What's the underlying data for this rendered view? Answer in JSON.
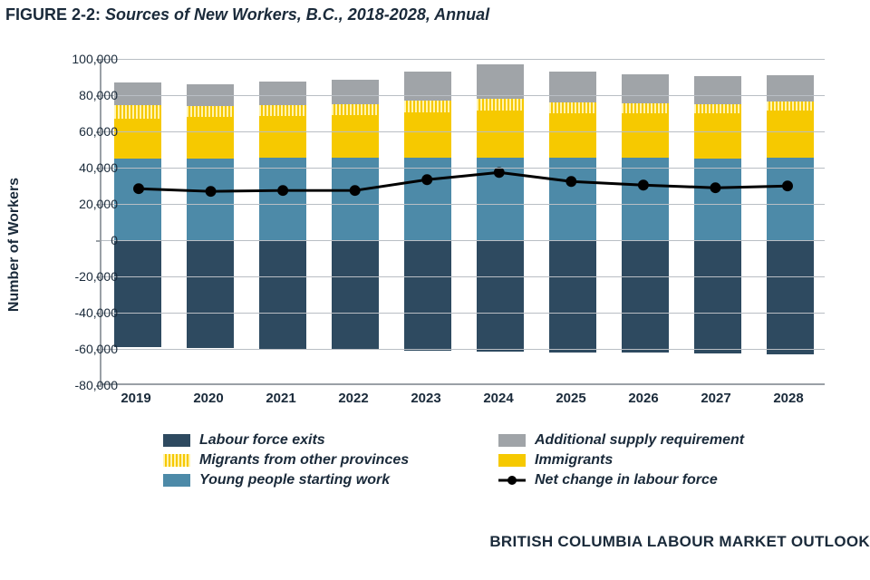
{
  "title_prefix": "FIGURE 2-2: ",
  "title_italic": "Sources of New Workers, B.C., 2018-2028, Annual",
  "footer": "BRITISH COLUMBIA LABOUR MARKET OUTLOOK",
  "ylabel": "Number of Workers",
  "chart": {
    "type": "stacked-bar-with-line",
    "ylim": [
      -80000,
      100000
    ],
    "ytick_step": 20000,
    "yticks": [
      -80000,
      -60000,
      -40000,
      -20000,
      0,
      20000,
      40000,
      60000,
      80000,
      100000
    ],
    "ytick_labels": [
      "-80,000",
      "-60,000",
      "-40,000",
      "-20,000",
      "0",
      "20,000",
      "40,000",
      "60,000",
      "80,000",
      "100,000"
    ],
    "categories": [
      "2019",
      "2020",
      "2021",
      "2022",
      "2023",
      "2024",
      "2025",
      "2026",
      "2027",
      "2028"
    ],
    "series": {
      "labour_force_exits": [
        -59000,
        -59500,
        -60000,
        -60500,
        -61000,
        -61500,
        -62000,
        -62000,
        -62500,
        -63000
      ],
      "young_people_starting_work": [
        45000,
        45000,
        45500,
        45500,
        45500,
        45500,
        45500,
        45500,
        45000,
        45500
      ],
      "immigrants": [
        22000,
        23000,
        23000,
        23500,
        25000,
        26000,
        24500,
        24500,
        25000,
        26000
      ],
      "migrants_from_other_provinces": [
        7500,
        6000,
        6000,
        6000,
        6500,
        6500,
        6000,
        5500,
        5000,
        5000
      ],
      "additional_supply_requirement": [
        12500,
        12000,
        13000,
        13500,
        16000,
        19000,
        17000,
        16000,
        15500,
        14500
      ],
      "net_change_in_labour_force": [
        28000,
        26500,
        27000,
        27000,
        33000,
        37000,
        32000,
        30000,
        28500,
        29500
      ]
    },
    "colors": {
      "labour_force_exits": "#2e4a60",
      "young_people_starting_work": "#4d8aa8",
      "immigrants": "#f6c900",
      "migrants_hatch_a": "#fff3b0",
      "migrants_hatch_b": "#f6c900",
      "additional_supply_requirement": "#a0a4a8",
      "line": "#000000",
      "grid": "#b9bec4",
      "axis": "#9aa0a6",
      "text": "#1a2a3a",
      "background": "#ffffff"
    },
    "bar_width_ratio": 0.64,
    "line_width": 3,
    "marker_radius": 6
  },
  "legend": [
    {
      "key": "labour_force_exits",
      "label": "Labour force exits",
      "type": "fill"
    },
    {
      "key": "additional_supply_requirement",
      "label": "Additional supply requirement",
      "type": "fill"
    },
    {
      "key": "migrants",
      "label": "Migrants from other provinces",
      "type": "hatch"
    },
    {
      "key": "immigrants",
      "label": "Immigrants",
      "type": "fill"
    },
    {
      "key": "young_people_starting_work",
      "label": "Young people starting work",
      "type": "fill"
    },
    {
      "key": "net_change",
      "label": "Net change in labour force",
      "type": "line"
    }
  ]
}
